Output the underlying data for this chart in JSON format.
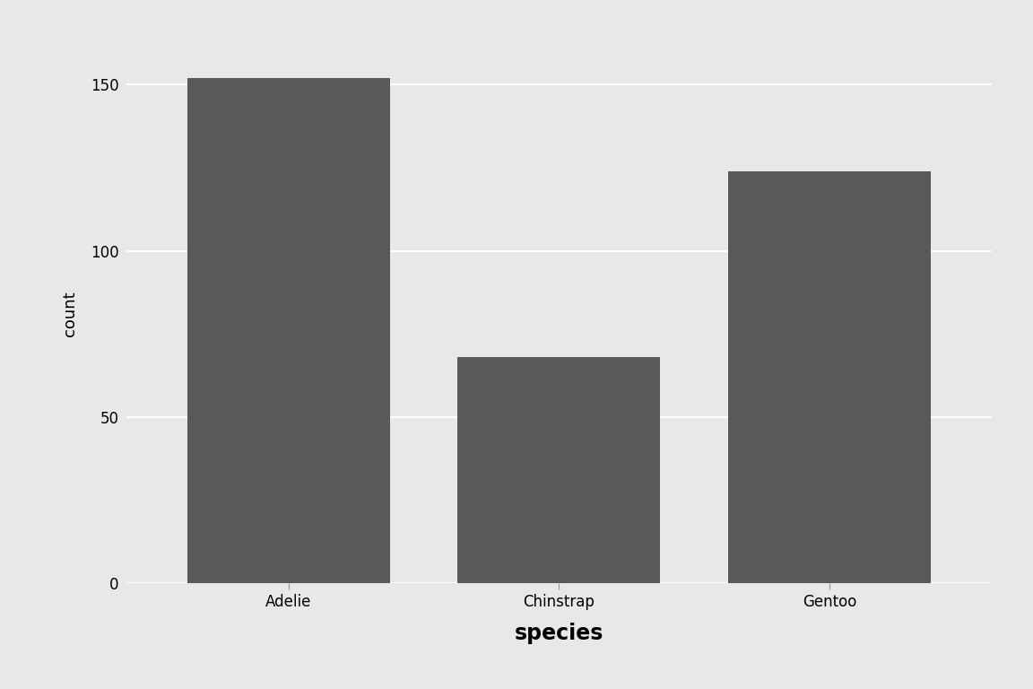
{
  "categories": [
    "Adelie",
    "Chinstrap",
    "Gentoo"
  ],
  "values": [
    152,
    68,
    124
  ],
  "bar_color": "#595959",
  "figure_bg": "#e8e8e8",
  "panel_bg": "#e8e8e8",
  "grid_color": "#ffffff",
  "xlabel": "species",
  "ylabel": "count",
  "xlabel_fontsize": 17,
  "ylabel_fontsize": 13,
  "tick_label_fontsize": 12,
  "xlabel_fontweight": "bold",
  "ylim": [
    0,
    162
  ],
  "yticks": [
    0,
    50,
    100,
    150
  ],
  "bar_width": 0.75
}
